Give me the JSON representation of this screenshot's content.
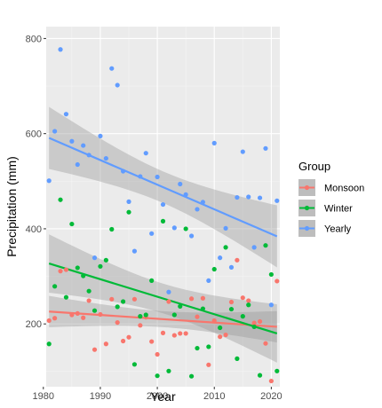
{
  "chart_data": {
    "type": "scatter",
    "title": "",
    "xlabel": "Year",
    "ylabel": "Precipitation (mm)",
    "xlim": [
      1980.5,
      2021.5
    ],
    "ylim": [
      68,
      825
    ],
    "x_ticks": [
      1980,
      1990,
      2000,
      2010,
      2020
    ],
    "y_ticks": [
      200,
      400,
      600,
      800
    ],
    "grid": true,
    "background": "#ebebeb",
    "legend": {
      "title": "Group",
      "placement": "right"
    },
    "series": [
      {
        "name": "Monsoon",
        "color": "#f8766d",
        "points": [
          [
            1981,
            207
          ],
          [
            1982,
            212
          ],
          [
            1983,
            311
          ],
          [
            1984,
            314
          ],
          [
            1985,
            219
          ],
          [
            1986,
            222
          ],
          [
            1987,
            213
          ],
          [
            1988,
            249
          ],
          [
            1989,
            146
          ],
          [
            1990,
            220
          ],
          [
            1991,
            158
          ],
          [
            1992,
            252
          ],
          [
            1993,
            203
          ],
          [
            1994,
            164
          ],
          [
            1995,
            172
          ],
          [
            1996,
            252
          ],
          [
            1997,
            197
          ],
          [
            1998,
            214
          ],
          [
            1999,
            163
          ],
          [
            2000,
            136
          ],
          [
            2001,
            181
          ],
          [
            2002,
            247
          ],
          [
            2003,
            176
          ],
          [
            2004,
            180
          ],
          [
            2005,
            180
          ],
          [
            2006,
            253
          ],
          [
            2007,
            215
          ],
          [
            2008,
            254
          ],
          [
            2009,
            114
          ],
          [
            2010,
            207
          ],
          [
            2011,
            173
          ],
          [
            2012,
            177
          ],
          [
            2013,
            246
          ],
          [
            2014,
            334
          ],
          [
            2015,
            255
          ],
          [
            2016,
            249
          ],
          [
            2017,
            202
          ],
          [
            2018,
            205
          ],
          [
            2019,
            159
          ],
          [
            2020,
            80
          ],
          [
            2021,
            290
          ]
        ],
        "trend": {
          "start": [
            1981,
            226
          ],
          "end": [
            2021,
            194
          ]
        }
      },
      {
        "name": "Winter",
        "color": "#00ba38",
        "points": [
          [
            1981,
            158
          ],
          [
            1982,
            279
          ],
          [
            1983,
            461
          ],
          [
            1984,
            256
          ],
          [
            1985,
            410
          ],
          [
            1986,
            318
          ],
          [
            1987,
            301
          ],
          [
            1988,
            269
          ],
          [
            1989,
            228
          ],
          [
            1990,
            321
          ],
          [
            1991,
            334
          ],
          [
            1992,
            399
          ],
          [
            1993,
            236
          ],
          [
            1994,
            247
          ],
          [
            1995,
            435
          ],
          [
            1996,
            115
          ],
          [
            1997,
            216
          ],
          [
            1998,
            219
          ],
          [
            1999,
            291
          ],
          [
            2000,
            91
          ],
          [
            2001,
            416
          ],
          [
            2002,
            101
          ],
          [
            2003,
            219
          ],
          [
            2004,
            237
          ],
          [
            2005,
            400
          ],
          [
            2006,
            90
          ],
          [
            2007,
            149
          ],
          [
            2008,
            232
          ],
          [
            2009,
            152
          ],
          [
            2010,
            315
          ],
          [
            2011,
            192
          ],
          [
            2012,
            361
          ],
          [
            2013,
            231
          ],
          [
            2014,
            127
          ],
          [
            2015,
            216
          ],
          [
            2016,
            240
          ],
          [
            2017,
            194
          ],
          [
            2018,
            92
          ],
          [
            2019,
            365
          ],
          [
            2020,
            304
          ],
          [
            2021,
            101
          ]
        ],
        "trend": {
          "start": [
            1981,
            327
          ],
          "end": [
            2021,
            180
          ]
        }
      },
      {
        "name": "Yearly",
        "color": "#619cff",
        "points": [
          [
            1981,
            501
          ],
          [
            1982,
            605
          ],
          [
            1983,
            777
          ],
          [
            1984,
            641
          ],
          [
            1985,
            584
          ],
          [
            1986,
            535
          ],
          [
            1987,
            575
          ],
          [
            1988,
            555
          ],
          [
            1989,
            339
          ],
          [
            1990,
            595
          ],
          [
            1991,
            548
          ],
          [
            1992,
            737
          ],
          [
            1993,
            702
          ],
          [
            1994,
            521
          ],
          [
            1995,
            457
          ],
          [
            1996,
            353
          ],
          [
            1997,
            510
          ],
          [
            1998,
            559
          ],
          [
            1999,
            390
          ],
          [
            2000,
            509
          ],
          [
            2001,
            451
          ],
          [
            2002,
            267
          ],
          [
            2003,
            402
          ],
          [
            2004,
            494
          ],
          [
            2005,
            472
          ],
          [
            2006,
            385
          ],
          [
            2007,
            441
          ],
          [
            2008,
            456
          ],
          [
            2009,
            291
          ],
          [
            2010,
            580
          ],
          [
            2011,
            339
          ],
          [
            2012,
            401
          ],
          [
            2013,
            319
          ],
          [
            2014,
            466
          ],
          [
            2015,
            562
          ],
          [
            2016,
            467
          ],
          [
            2017,
            361
          ],
          [
            2018,
            465
          ],
          [
            2019,
            569
          ],
          [
            2020,
            240
          ],
          [
            2021,
            459
          ]
        ],
        "trend": {
          "start": [
            1981,
            591
          ],
          "end": [
            2021,
            384
          ]
        }
      }
    ]
  }
}
